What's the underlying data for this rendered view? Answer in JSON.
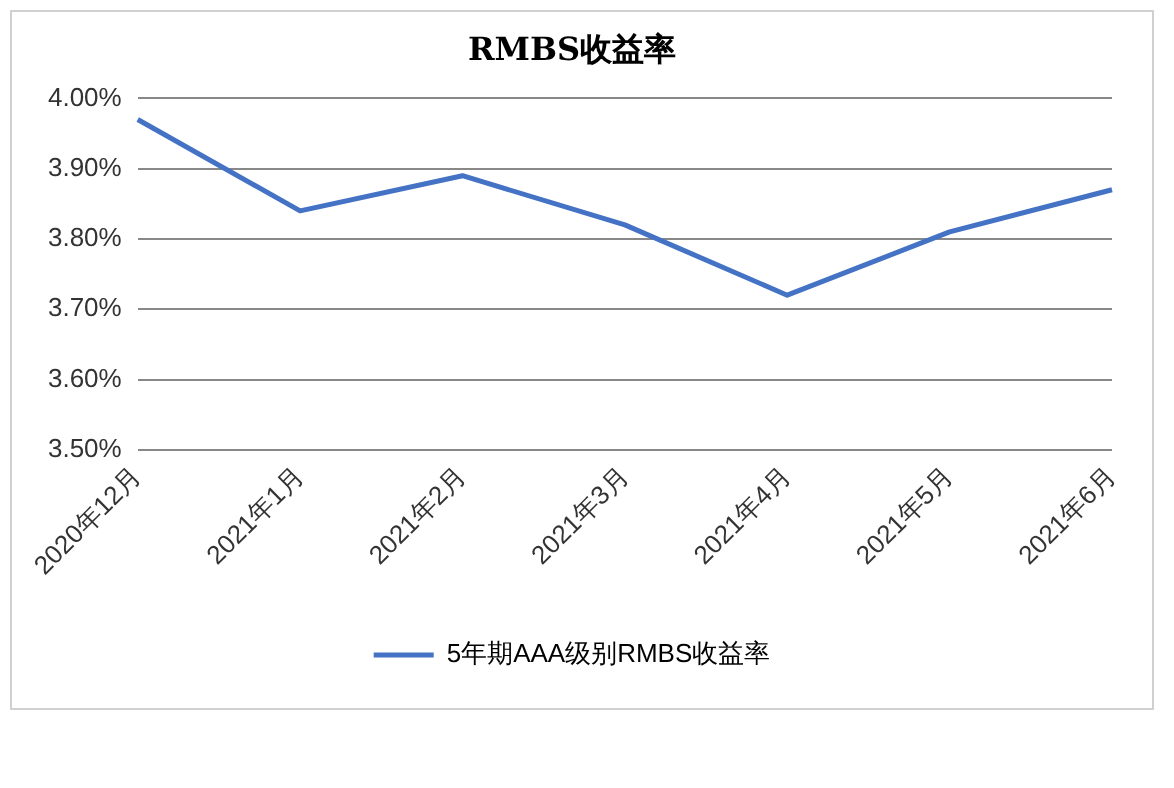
{
  "chart_data": {
    "type": "line",
    "title": "RMBS收益率",
    "categories": [
      "2020年12月",
      "2021年1月",
      "2021年2月",
      "2021年3月",
      "2021年4月",
      "2021年5月",
      "2021年6月"
    ],
    "series": [
      {
        "name": "5年期AAA级别RMBS收益率",
        "color": "#4472c4",
        "values": [
          3.97,
          3.84,
          3.89,
          3.82,
          3.72,
          3.81,
          3.87
        ]
      }
    ],
    "ylim": [
      3.5,
      4.0
    ],
    "yticks": [
      {
        "value": 3.5,
        "label": "3.50%"
      },
      {
        "value": 3.6,
        "label": "3.60%"
      },
      {
        "value": 3.7,
        "label": "3.70%"
      },
      {
        "value": 3.8,
        "label": "3.80%"
      },
      {
        "value": 3.9,
        "label": "3.90%"
      },
      {
        "value": 4.0,
        "label": "4.00%"
      }
    ],
    "grid": "y",
    "legend": "bottom",
    "marker": "none",
    "line_style": "solid"
  }
}
